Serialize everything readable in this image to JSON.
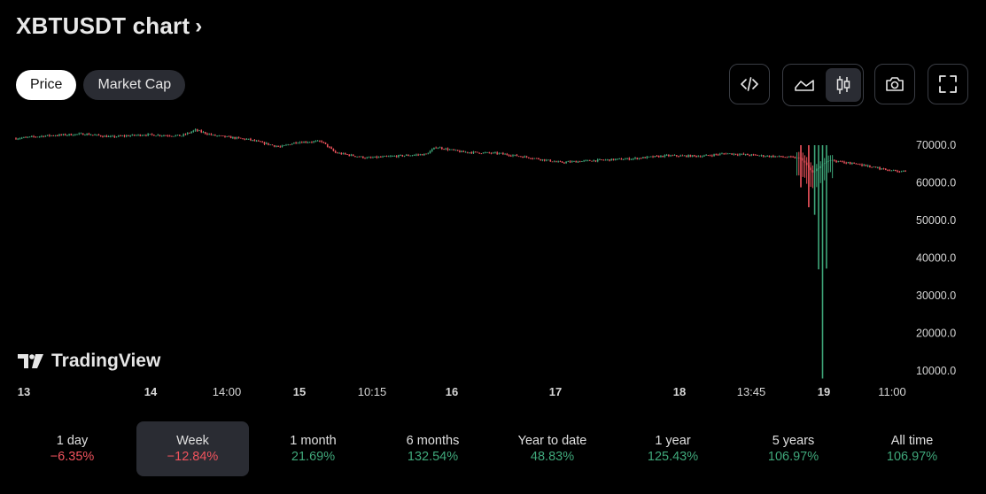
{
  "header": {
    "title": "XBTUSDT chart",
    "chevron": "›"
  },
  "toggles": [
    {
      "label": "Price",
      "active": true
    },
    {
      "label": "Market Cap",
      "active": false
    }
  ],
  "toolbar": {
    "embed_icon": "code-icon",
    "line_chart_icon": "area-chart-icon",
    "candle_chart_icon": "candlestick-icon",
    "candle_active": true,
    "snapshot_icon": "camera-icon",
    "fullscreen_icon": "fullscreen-icon"
  },
  "brand": {
    "name": "TradingView"
  },
  "colors": {
    "up": "#3fa77a",
    "down": "#f0535d",
    "background": "#000000",
    "axis_text": "#d6d6d6"
  },
  "chart_data": {
    "type": "candlestick",
    "title": "",
    "xlabel": "",
    "ylabel": "",
    "x_tick_labels": [
      "13",
      "14",
      "14:00",
      "15",
      "10:15",
      "16",
      "17",
      "18",
      "13:45",
      "19",
      "11:00"
    ],
    "y_tick_labels": [
      "70000.0",
      "60000.0",
      "50000.0",
      "40000.0",
      "30000.0",
      "20000.0",
      "10000.0"
    ],
    "y_ticks": [
      70000,
      60000,
      50000,
      40000,
      30000,
      20000,
      10000
    ],
    "ylim": [
      7000,
      73000
    ],
    "grid": false,
    "close_series_approx": [
      {
        "x": 0,
        "close": 71800
      },
      {
        "x": 15,
        "close": 72500
      },
      {
        "x": 35,
        "close": 73000
      },
      {
        "x": 48,
        "close": 72200
      },
      {
        "x": 65,
        "close": 72800
      },
      {
        "x": 84,
        "close": 72500
      },
      {
        "x": 91,
        "close": 74000
      },
      {
        "x": 100,
        "close": 72600
      },
      {
        "x": 118,
        "close": 71500
      },
      {
        "x": 134,
        "close": 69500
      },
      {
        "x": 142,
        "close": 70800
      },
      {
        "x": 155,
        "close": 71000
      },
      {
        "x": 162,
        "close": 68000
      },
      {
        "x": 178,
        "close": 66600
      },
      {
        "x": 190,
        "close": 67000
      },
      {
        "x": 208,
        "close": 67600
      },
      {
        "x": 213,
        "close": 69500
      },
      {
        "x": 226,
        "close": 68200
      },
      {
        "x": 245,
        "close": 67800
      },
      {
        "x": 262,
        "close": 66600
      },
      {
        "x": 276,
        "close": 65400
      },
      {
        "x": 292,
        "close": 65900
      },
      {
        "x": 312,
        "close": 66400
      },
      {
        "x": 330,
        "close": 67200
      },
      {
        "x": 348,
        "close": 67100
      },
      {
        "x": 360,
        "close": 67800
      },
      {
        "x": 378,
        "close": 67200
      },
      {
        "x": 392,
        "close": 66800
      },
      {
        "x": 398,
        "close": 66500
      },
      {
        "x": 404,
        "close": 63000
      },
      {
        "x": 412,
        "close": 66000
      },
      {
        "x": 428,
        "close": 64900
      },
      {
        "x": 438,
        "close": 63800
      },
      {
        "x": 450,
        "close": 62900
      }
    ],
    "spike_lows_approx": [
      {
        "x": 398,
        "low": 58800
      },
      {
        "x": 402,
        "low": 53500
      },
      {
        "x": 405,
        "low": 51500
      },
      {
        "x": 407,
        "low": 37000
      },
      {
        "x": 409,
        "low": 8000
      },
      {
        "x": 411,
        "low": 37200
      }
    ]
  },
  "periods": [
    {
      "label": "1 day",
      "change": "−6.35%",
      "direction": "down",
      "active": false
    },
    {
      "label": "Week",
      "change": "−12.84%",
      "direction": "down",
      "active": true
    },
    {
      "label": "1 month",
      "change": "21.69%",
      "direction": "up",
      "active": false
    },
    {
      "label": "6 months",
      "change": "132.54%",
      "direction": "up",
      "active": false
    },
    {
      "label": "Year to date",
      "change": "48.83%",
      "direction": "up",
      "active": false
    },
    {
      "label": "1 year",
      "change": "125.43%",
      "direction": "up",
      "active": false
    },
    {
      "label": "5 years",
      "change": "106.97%",
      "direction": "up",
      "active": false
    },
    {
      "label": "All time",
      "change": "106.97%",
      "direction": "up",
      "active": false
    }
  ]
}
